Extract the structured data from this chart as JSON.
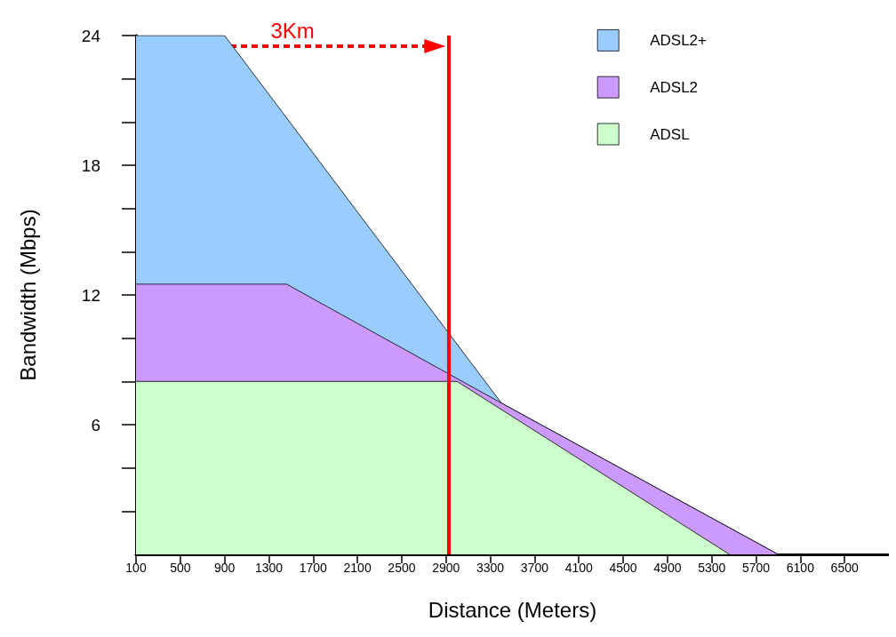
{
  "chart_data": {
    "type": "area",
    "xlabel": "Distance (Meters)",
    "ylabel": "Bandwidth (Mbps)",
    "xlim": [
      100,
      6900
    ],
    "xticks": [
      100,
      500,
      900,
      1300,
      1700,
      2100,
      2500,
      2900,
      3300,
      3700,
      4100,
      4500,
      4900,
      5300,
      5700,
      6100,
      6500
    ],
    "ylim": [
      0,
      24
    ],
    "yticks": [
      {
        "value": 2,
        "label": null
      },
      {
        "value": 4,
        "label": null
      },
      6,
      {
        "value": 8,
        "label": null
      },
      {
        "value": 10,
        "label": null
      },
      12,
      {
        "value": 14,
        "label": null
      },
      {
        "value": 16,
        "label": null
      },
      18,
      {
        "value": 20,
        "label": null
      },
      {
        "value": 22,
        "label": null
      },
      24
    ],
    "series": [
      {
        "name": "ADSL2+",
        "color": "#99ccff",
        "x": [
          100,
          900,
          3400,
          5900
        ],
        "values": [
          24,
          24,
          7,
          0
        ]
      },
      {
        "name": "ADSL2",
        "color": "#cc99ff",
        "x": [
          100,
          1460,
          3400,
          5900
        ],
        "values": [
          12.5,
          12.5,
          7,
          0
        ]
      },
      {
        "name": "ADSL",
        "color": "#ccffcc",
        "x": [
          100,
          3000,
          5460
        ],
        "values": [
          8,
          8,
          0
        ]
      }
    ],
    "ref_lines": [
      {
        "axis": "x",
        "value": 2920,
        "label": "3Km",
        "color": "#ff0000"
      }
    ],
    "grid": false,
    "legend": "top right",
    "marker": "none",
    "line_style": "solid"
  }
}
